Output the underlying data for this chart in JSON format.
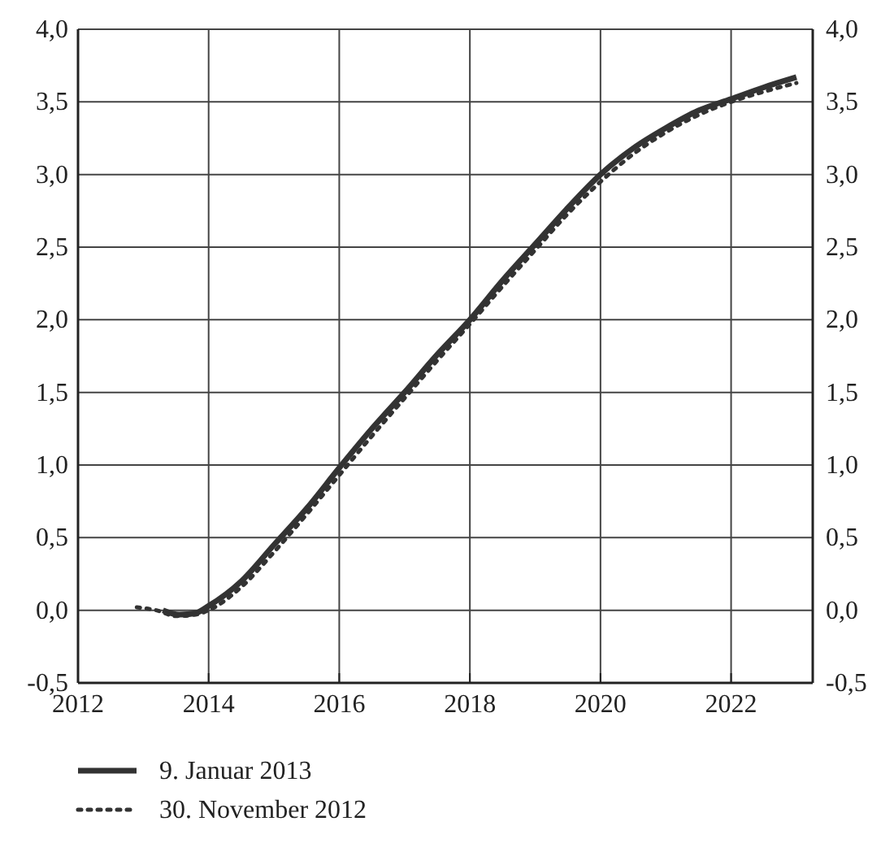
{
  "chart_data": {
    "type": "line",
    "xlim": [
      2012,
      2023.25
    ],
    "xticks": [
      2012,
      2014,
      2016,
      2018,
      2020,
      2022
    ],
    "ylim": [
      -0.5,
      4
    ],
    "yticks": [
      {
        "value": -0.5,
        "label": "-0,5"
      },
      {
        "value": 0,
        "label": "0,0"
      },
      {
        "value": 0.5,
        "label": "0,5"
      },
      {
        "value": 1,
        "label": "1,0"
      },
      {
        "value": 1.5,
        "label": "1,5"
      },
      {
        "value": 2,
        "label": "2,0"
      },
      {
        "value": 2.5,
        "label": "2,5"
      },
      {
        "value": 3,
        "label": "3,0"
      },
      {
        "value": 3.5,
        "label": "3,5"
      },
      {
        "value": 4,
        "label": "4,0"
      }
    ],
    "y2lim": [
      -0.5,
      4
    ],
    "y2ticks": [
      {
        "value": -0.5,
        "label": "-0,5"
      },
      {
        "value": 0,
        "label": "0,0"
      },
      {
        "value": 0.5,
        "label": "0,5"
      },
      {
        "value": 1,
        "label": "1,0"
      },
      {
        "value": 1.5,
        "label": "1,5"
      },
      {
        "value": 2,
        "label": "2,0"
      },
      {
        "value": 2.5,
        "label": "2,5"
      },
      {
        "value": 3,
        "label": "3,0"
      },
      {
        "value": 3.5,
        "label": "3,5"
      },
      {
        "value": 4,
        "label": "4,0"
      }
    ],
    "grid": true,
    "legend": "bottom",
    "series": [
      {
        "name": "9. Januar 2013",
        "color": "#333333",
        "line_style": "solid",
        "x": [
          2013.3,
          2013.55,
          2013.8,
          2014,
          2014.5,
          2015,
          2015.5,
          2016,
          2016.5,
          2017,
          2017.5,
          2018,
          2018.5,
          2019,
          2019.5,
          2020,
          2020.5,
          2021,
          2021.5,
          2022,
          2022.5,
          2023
        ],
        "values": [
          0.0,
          -0.03,
          -0.02,
          0.03,
          0.2,
          0.45,
          0.7,
          0.98,
          1.25,
          1.5,
          1.76,
          2.0,
          2.27,
          2.52,
          2.77,
          3.0,
          3.18,
          3.32,
          3.44,
          3.52,
          3.6,
          3.67
        ]
      },
      {
        "name": "30. November 2012",
        "color": "#333333",
        "line_style": "dotted",
        "x": [
          2012.9,
          2013.2,
          2013.5,
          2013.8,
          2014,
          2014.5,
          2015,
          2015.5,
          2016,
          2016.5,
          2017,
          2017.5,
          2018,
          2018.5,
          2019,
          2019.5,
          2020,
          2020.5,
          2021,
          2021.5,
          2022,
          2022.5,
          2023
        ],
        "values": [
          0.02,
          0.0,
          -0.04,
          -0.03,
          0.0,
          0.16,
          0.4,
          0.66,
          0.93,
          1.2,
          1.46,
          1.72,
          1.97,
          2.23,
          2.48,
          2.73,
          2.95,
          3.14,
          3.29,
          3.41,
          3.5,
          3.57,
          3.63
        ]
      }
    ]
  }
}
